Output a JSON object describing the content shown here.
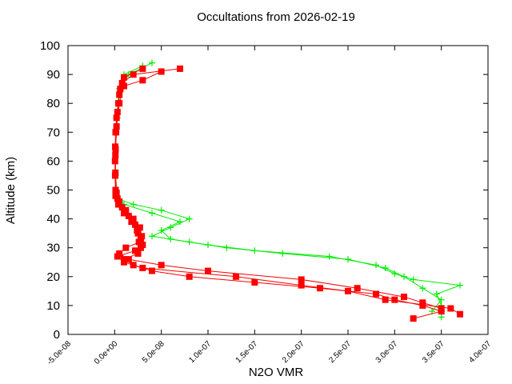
{
  "chart_data": {
    "type": "line",
    "title": "Occultations from 2026-02-19",
    "x_label": "N2O VMR",
    "y_label": "Altitude (km)",
    "xlim": [
      -5e-08,
      4e-07
    ],
    "xticks": [
      {
        "value": -5e-08,
        "label": "-5.0e-08"
      },
      {
        "value": 0,
        "label": "0.0e+00"
      },
      {
        "value": 5e-08,
        "label": "5.0e-08"
      },
      {
        "value": 1e-07,
        "label": "1.0e-07"
      },
      {
        "value": 1.5e-07,
        "label": "1.5e-07"
      },
      {
        "value": 2e-07,
        "label": "2.0e-07"
      },
      {
        "value": 2.5e-07,
        "label": "2.5e-07"
      },
      {
        "value": 3e-07,
        "label": "3.0e-07"
      },
      {
        "value": 3.5e-07,
        "label": "3.5e-07"
      },
      {
        "value": 4e-07,
        "label": "4.0e-07"
      }
    ],
    "ylim": [
      0,
      100
    ],
    "yticks": [
      0,
      10,
      20,
      30,
      40,
      50,
      60,
      70,
      80,
      90,
      100
    ],
    "series": [
      {
        "color": "#00ee00",
        "marker": "plus",
        "x": [
          3.5e-07,
          3.5e-07,
          3.45e-07,
          3.7e-07,
          3.2e-07,
          3e-07,
          2.8e-07,
          2.3e-07,
          1.5e-07,
          1e-07,
          6e-08,
          5e-08,
          7e-08,
          4e-08,
          1e-08,
          2e-09,
          1e-09,
          1e-09,
          2e-09,
          5e-09,
          1e-08,
          3e-08
        ],
        "values": [
          6,
          10,
          14,
          17,
          19,
          21,
          24,
          27,
          29,
          31,
          33,
          36,
          39,
          42,
          45,
          48,
          55,
          65,
          75,
          85,
          90,
          93
        ]
      },
      {
        "color": "#00ee00",
        "marker": "plus",
        "x": [
          3.4e-07,
          3.5e-07,
          3.3e-07,
          3.1e-07,
          2.9e-07,
          2.5e-07,
          1.8e-07,
          1.2e-07,
          8e-08,
          4e-08,
          6e-08,
          8e-08,
          5e-08,
          2e-08,
          3e-09,
          1e-09,
          1e-09,
          3e-09,
          6e-09,
          1.5e-08,
          4e-08
        ],
        "values": [
          8,
          12,
          16,
          20,
          23,
          26,
          28,
          30,
          32,
          34,
          37,
          40,
          43,
          45,
          47,
          55,
          65,
          75,
          85,
          90,
          94
        ]
      },
      {
        "color": "#ff0000",
        "marker": "square",
        "x": [
          3.2e-07,
          3.5e-07,
          3.3e-07,
          3e-07,
          2.8e-07,
          2.2e-07,
          1.5e-07,
          8e-08,
          4e-08,
          2e-08,
          1e-08,
          2.5e-08,
          2.8e-08,
          2.6e-08,
          2.5e-08,
          2.2e-08,
          1.5e-08,
          8e-09,
          3e-09,
          1e-09,
          5e-10,
          4e-10,
          6e-10,
          1e-09,
          2e-09,
          4e-09,
          6e-09,
          1e-08,
          3e-08
        ],
        "values": [
          5.5,
          8,
          10,
          12,
          14,
          16,
          18,
          20,
          22,
          24,
          26,
          28,
          30,
          32,
          35,
          38,
          41,
          44,
          47,
          50,
          55,
          60,
          65,
          70,
          75,
          80,
          85,
          89,
          92
        ]
      },
      {
        "color": "#ff0000",
        "marker": "square",
        "x": [
          3.7e-07,
          3.6e-07,
          2.9e-07,
          2.5e-07,
          2e-07,
          1.3e-07,
          3e-08,
          1e-08,
          3e-09,
          2.2e-08,
          3e-08,
          2.8e-08,
          2.4e-08,
          1.8e-08,
          1e-08,
          4e-09,
          1e-09,
          6e-10,
          8e-10,
          1.5e-09,
          3e-09,
          5e-09,
          8e-09,
          2e-08,
          7e-08
        ],
        "values": [
          7,
          9,
          12,
          15,
          17,
          20,
          23,
          25,
          27,
          29,
          31,
          33,
          36,
          39,
          42,
          45,
          48,
          55,
          62,
          70,
          77,
          83,
          87,
          90,
          92
        ]
      },
      {
        "color": "#ff0000",
        "marker": "square",
        "x": [
          3.5e-07,
          3.3e-07,
          3.1e-07,
          2.6e-07,
          2e-07,
          1e-07,
          5e-08,
          1.5e-08,
          5e-09,
          1.2e-08,
          2.7e-08,
          2.9e-08,
          2.7e-08,
          2e-08,
          1.2e-08,
          5e-09,
          2e-09,
          8e-10,
          1e-09,
          2e-09,
          5e-09,
          1e-08,
          3e-08,
          5e-08
        ],
        "values": [
          9,
          11,
          13,
          16,
          19,
          22,
          24,
          26,
          28,
          30,
          32,
          34,
          37,
          40,
          43,
          46,
          49,
          56,
          64,
          72,
          80,
          86,
          88,
          91
        ]
      }
    ]
  }
}
